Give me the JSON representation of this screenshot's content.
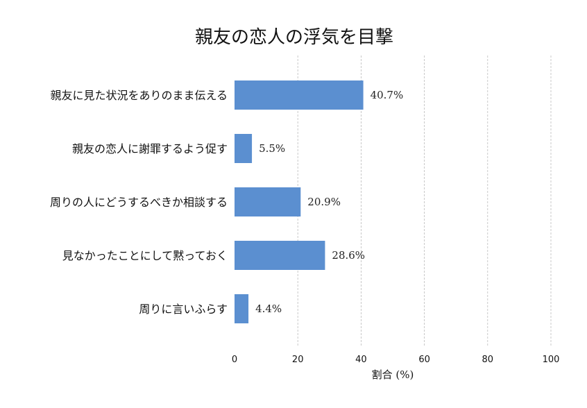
{
  "chart_data": {
    "type": "bar",
    "orientation": "horizontal",
    "title": "親友の恋人の浮気を目撃",
    "xlabel": "割合 (%)",
    "ylabel": "",
    "categories": [
      "親友に見た状況をありのまま伝える",
      "親友の恋人に謝罪するよう促す",
      "周りの人にどうするべきか相談する",
      "見なかったことにして黙っておく",
      "周りに言いふらす"
    ],
    "values": [
      40.7,
      5.5,
      20.9,
      28.6,
      4.4
    ],
    "value_labels": [
      "40.7%",
      "5.5%",
      "20.9%",
      "28.6%",
      "4.4%"
    ],
    "xlim": [
      0,
      100
    ],
    "xticks": [
      0,
      20,
      40,
      60,
      80,
      100
    ],
    "xtick_labels": [
      "0",
      "20",
      "40",
      "60",
      "80",
      "100"
    ],
    "grid": "vertical dashed",
    "legend": "none",
    "bar_color": "#5b8fd0"
  }
}
